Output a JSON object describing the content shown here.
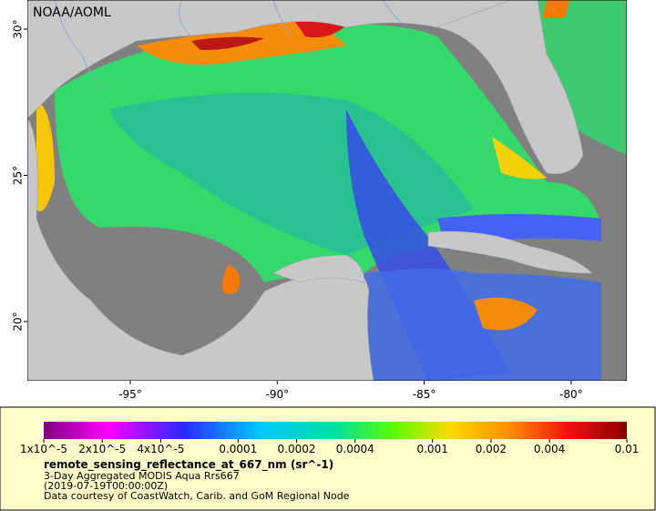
{
  "map": {
    "watermark": "NOAA/AOML",
    "lat_labels": [
      "30°",
      "25°",
      "20°"
    ],
    "lon_labels": [
      "-95°",
      "-90°",
      "-85°",
      "-80°"
    ]
  },
  "legend": {
    "range": [
      1e-05,
      0.01
    ],
    "scale": "log",
    "ticks": [
      {
        "value": 1e-05,
        "label": "1x10^-5"
      },
      {
        "value": 2e-05,
        "label": "2x10^-5"
      },
      {
        "value": 4e-05,
        "label": "4x10^-5"
      },
      0.0001,
      0.0002,
      0.0004,
      0.001,
      0.002,
      0.004,
      0.01
    ],
    "variable": "remote_sensing_reflectance_at_667_nm (sr^-1)",
    "lines": [
      "3-Day Aggregated MODIS Aqua Rrs667",
      "(2019-07-19T00:00:00Z)",
      "Data courtesy of CoastWatch, Carib. and GoM Regional Node"
    ]
  }
}
